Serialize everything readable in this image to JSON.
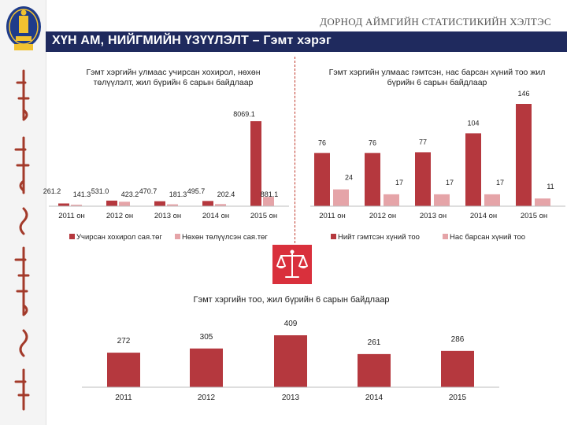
{
  "header": {
    "org_title": "ДОРНОД АЙМГИЙН СТАТИСТИКИЙН ХЭЛТЭС",
    "section_title": "ХҮН АМ, НИЙГМИЙН ҮЗҮҮЛЭЛТ – Гэмт хэрэг"
  },
  "colors": {
    "primary": "#b5383e",
    "secondary": "#e5a4a8",
    "header_bar": "#1f2a5e",
    "icon_red": "#d9303c"
  },
  "icons": {
    "emblem": "state-emblem-icon",
    "scale": "scale-of-justice-icon"
  },
  "chart_data": [
    {
      "type": "bar",
      "title": "Гэмт хэргийн улмаас учирсан хохирол, нөхөн төлүүлэлт, жил бүрийн 6 сарын байдлаар",
      "categories": [
        "2011 он",
        "2012 он",
        "2013 он",
        "2014 он",
        "2015 он"
      ],
      "series": [
        {
          "name": "Учирсан хохирол сая.төг",
          "values": [
            261.2,
            531.0,
            470.7,
            495.7,
            8069.1
          ],
          "labels": [
            "261.2",
            "531.0",
            "470.7",
            "495.7",
            "8069.1"
          ]
        },
        {
          "name": "Нөхөн төлүүлсэн сая.төг",
          "values": [
            141.3,
            423.2,
            181.3,
            202.4,
            881.1
          ],
          "labels": [
            "141.3",
            "423.2",
            "181.3",
            "202.4",
            "881.1"
          ]
        }
      ],
      "legend": "bottom",
      "grid": false
    },
    {
      "type": "bar",
      "title": "Гэмт хэргийн улмаас гэмтсэн, нас барсан хүний тоо жил бүрийн 6 сарын байдлаар",
      "categories": [
        "2011 он",
        "2012 он",
        "2013 он",
        "2014 он",
        "2015 он"
      ],
      "series": [
        {
          "name": "Нийт гэмтсэн хүний тоо",
          "values": [
            76,
            76,
            77,
            104,
            146
          ],
          "labels": [
            "76",
            "76",
            "77",
            "104",
            "146"
          ]
        },
        {
          "name": "Нас барсан хүний тоо",
          "values": [
            24,
            17,
            17,
            17,
            11
          ],
          "labels": [
            "24",
            "17",
            "17",
            "17",
            "11"
          ]
        }
      ],
      "legend": "bottom",
      "grid": false
    },
    {
      "type": "bar",
      "title": "Гэмт хэргийн тоо, жил бүрийн 6 сарын байдлаар",
      "categories": [
        "2011",
        "2012",
        "2013",
        "2014",
        "2015"
      ],
      "series": [
        {
          "values": [
            272,
            305,
            409,
            261,
            286
          ],
          "labels": [
            "272",
            "305",
            "409",
            "261",
            "286"
          ]
        }
      ],
      "legend": "none",
      "grid": false
    }
  ]
}
